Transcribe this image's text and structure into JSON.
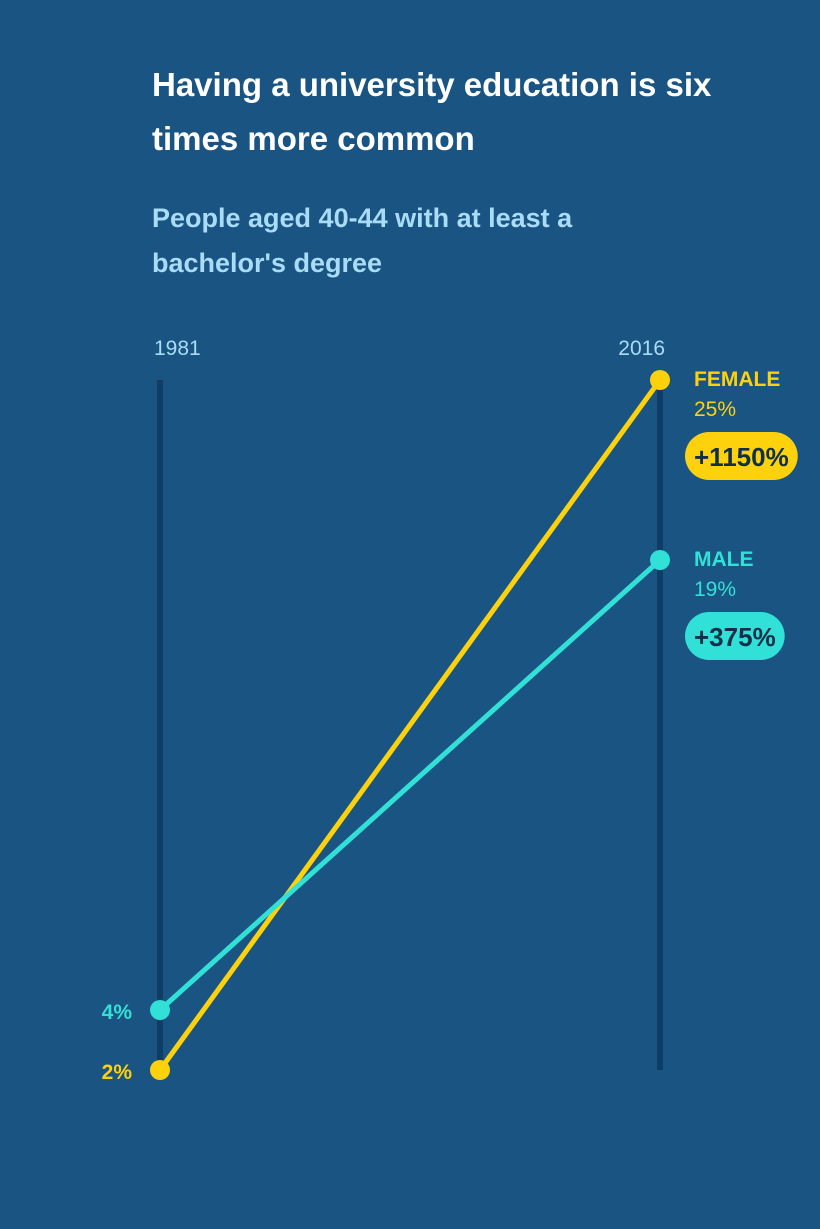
{
  "title": "Having a university education is six times more common",
  "subtitle": "People aged 40-44 with at least a bachelor's degree",
  "colors": {
    "background": "#1a5482",
    "axis": "#0e3d66",
    "title": "#ffffff",
    "subtitle": "#a9dcf7",
    "female": "#fdd20d",
    "male": "#31e0d6",
    "badge_text": "#0f2f4a"
  },
  "chart_data": {
    "type": "slope",
    "x": [
      "1981",
      "2016"
    ],
    "ylim": [
      2,
      25
    ],
    "series": [
      {
        "name": "FEMALE",
        "key": "female",
        "values": [
          2,
          25
        ],
        "start_label": "2%",
        "end_label": "25%",
        "change_label": "+1150%"
      },
      {
        "name": "MALE",
        "key": "male",
        "values": [
          4,
          19
        ],
        "start_label": "4%",
        "end_label": "19%",
        "change_label": "+375%"
      }
    ]
  }
}
